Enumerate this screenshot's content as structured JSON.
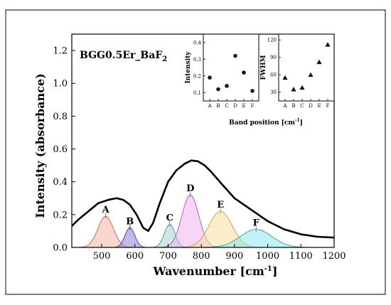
{
  "chart_data": {
    "type": "area",
    "sample": {
      "prefix": "BGG0.5Er_BaF",
      "sub": "2"
    },
    "xlabel": "Wavenumber [cm",
    "xlabel_sup": "-1",
    "xlabel_suffix": "]",
    "ylabel": "Intensity (absorbance)",
    "xlim": [
      410,
      1200
    ],
    "ylim": [
      0,
      1.3
    ],
    "xticks": [
      "500",
      "600",
      "700",
      "800",
      "900",
      "1000",
      "1100",
      "1200"
    ],
    "yticks": [
      "0.0",
      "0.2",
      "0.4",
      "0.6",
      "0.8",
      "1.0",
      "1.2"
    ],
    "ytick_values": [
      0,
      0.2,
      0.4,
      0.6,
      0.8,
      1.0,
      1.2
    ],
    "xtick_values": [
      500,
      600,
      700,
      800,
      900,
      1000,
      1100,
      1200
    ],
    "peaks": [
      {
        "name": "A",
        "center": 512,
        "height": 0.19,
        "fwhm": 55,
        "fill": "#f4b6a8",
        "stroke": "#d9573f"
      },
      {
        "name": "B",
        "center": 585,
        "height": 0.12,
        "fwhm": 35,
        "fill": "#8f7fe0",
        "stroke": "#3a2fb0"
      },
      {
        "name": "C",
        "center": 705,
        "height": 0.14,
        "fwhm": 38,
        "fill": "#a7d3cf",
        "stroke": "#3f8f9a"
      },
      {
        "name": "D",
        "center": 767,
        "height": 0.32,
        "fwhm": 60,
        "fill": "#efb3ee",
        "stroke": "#b84cc2"
      },
      {
        "name": "E",
        "center": 858,
        "height": 0.22,
        "fwhm": 82,
        "fill": "#f7e0a0",
        "stroke": "#c9a02a"
      },
      {
        "name": "F",
        "center": 965,
        "height": 0.11,
        "fwhm": 112,
        "fill": "#8fe6ee",
        "stroke": "#2a9fb0"
      }
    ],
    "envelope": {
      "x": [
        410,
        430,
        460,
        490,
        520,
        545,
        565,
        585,
        605,
        625,
        640,
        655,
        675,
        700,
        725,
        750,
        770,
        790,
        810,
        830,
        860,
        900,
        950,
        1000,
        1050,
        1100,
        1150,
        1200
      ],
      "y": [
        0.13,
        0.17,
        0.22,
        0.27,
        0.29,
        0.3,
        0.29,
        0.26,
        0.2,
        0.12,
        0.1,
        0.15,
        0.27,
        0.4,
        0.47,
        0.51,
        0.53,
        0.525,
        0.5,
        0.46,
        0.39,
        0.3,
        0.23,
        0.16,
        0.11,
        0.08,
        0.065,
        0.06
      ]
    },
    "insets": [
      {
        "ylabel": "Intensity",
        "ylim": [
          0.05,
          0.45
        ],
        "yticks": [
          "0.1",
          "0.2",
          "0.3",
          "0.4"
        ],
        "ytick_values": [
          0.1,
          0.2,
          0.3,
          0.4
        ],
        "categories": [
          "A",
          "B",
          "C",
          "D",
          "E",
          "F"
        ],
        "values": [
          0.19,
          0.12,
          0.14,
          0.32,
          0.22,
          0.11
        ],
        "marker": "circle"
      },
      {
        "ylabel": "FWHM",
        "ylim": [
          15,
          130
        ],
        "yticks": [
          "30",
          "60",
          "90",
          "120"
        ],
        "ytick_values": [
          30,
          60,
          90,
          120
        ],
        "categories": [
          "A",
          "B",
          "C",
          "D",
          "E",
          "F"
        ],
        "values": [
          55,
          35,
          38,
          60,
          82,
          112
        ],
        "marker": "triangle"
      }
    ],
    "inset_xlabel": "Band position [cm",
    "inset_xlabel_sup": "-1",
    "inset_xlabel_suffix": "]"
  }
}
